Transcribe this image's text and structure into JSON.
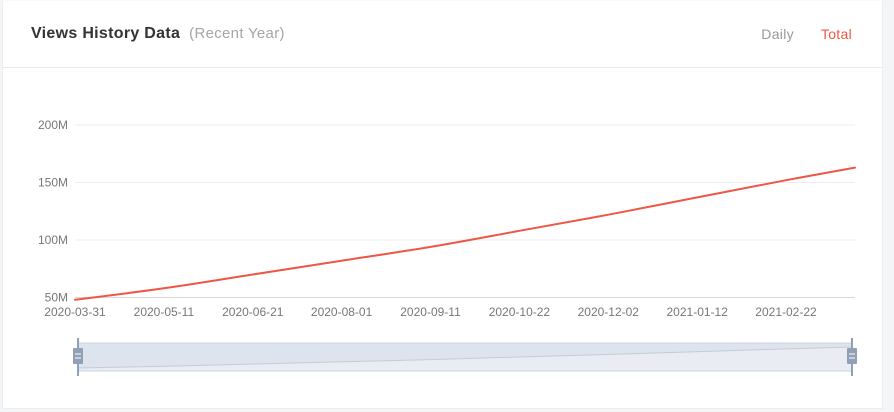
{
  "header": {
    "title": "Views History Data",
    "subtitle": "(Recent Year)",
    "tabs": [
      {
        "label": "Daily",
        "active": false
      },
      {
        "label": "Total",
        "active": true
      }
    ]
  },
  "colors": {
    "accent_red": "#ee5746",
    "line": "#ee5746",
    "axis_label": "#777777",
    "gridline": "#ededed",
    "axis_line": "#d8d8d8",
    "slider_track": "#dde4ee",
    "slider_track_border": "#c9d3e0",
    "slider_shadow_fill": "#e9edf3",
    "slider_shadow_line": "#c2ccd9",
    "slider_handle": "#8fa0b7"
  },
  "chart_data": {
    "type": "line",
    "title": "Views History Data (Recent Year)",
    "x_labels": [
      "2020-03-31",
      "2020-05-11",
      "2020-06-21",
      "2020-08-01",
      "2020-09-11",
      "2020-10-22",
      "2020-12-02",
      "2021-01-12",
      "2021-02-22"
    ],
    "values_millions": [
      48,
      58,
      70,
      82,
      94,
      108,
      122,
      137,
      152
    ],
    "end_value_millions": 163,
    "ylabel": "",
    "xlabel": "",
    "yticks_labels": [
      "50M",
      "100M",
      "150M",
      "200M"
    ],
    "yticks_values": [
      50,
      100,
      150,
      200
    ],
    "ylim": [
      50,
      200
    ],
    "grid": true,
    "legend_position": "none",
    "series_color": "#ee5746",
    "has_range_slider": true
  }
}
